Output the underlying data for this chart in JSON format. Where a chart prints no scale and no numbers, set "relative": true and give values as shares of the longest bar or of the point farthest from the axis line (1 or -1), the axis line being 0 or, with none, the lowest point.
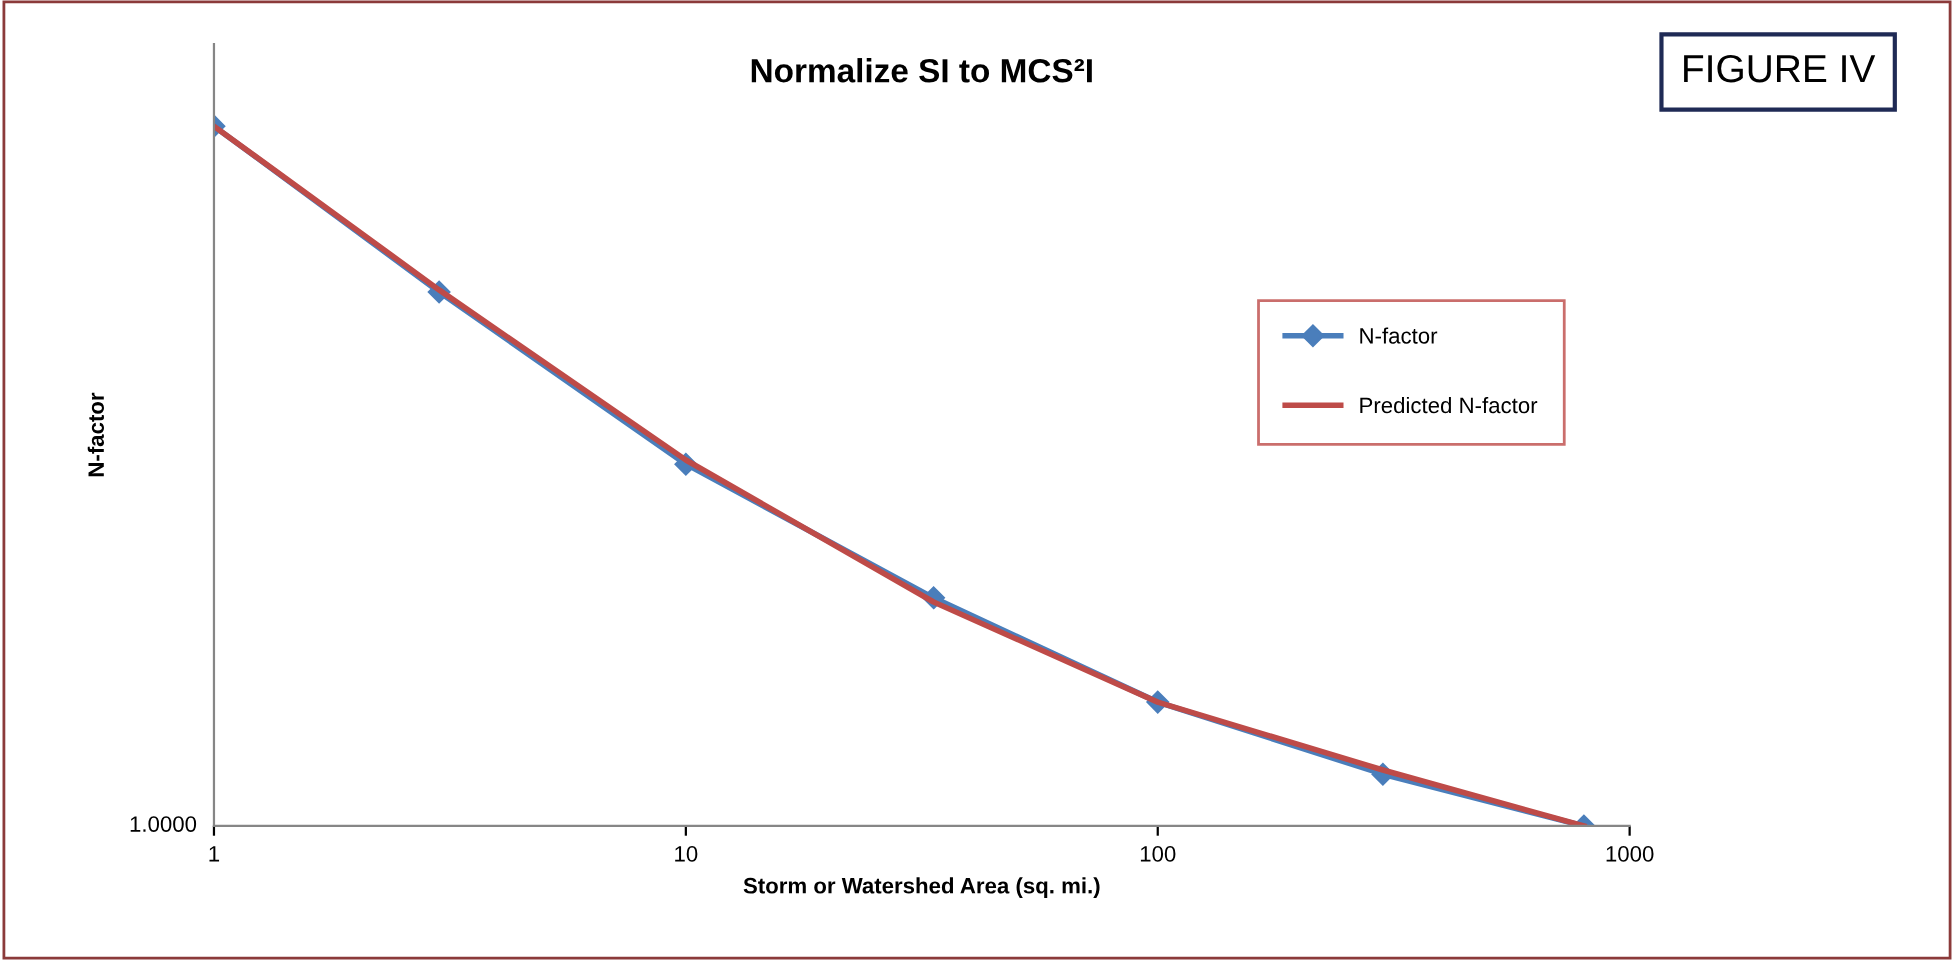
{
  "chart_data": {
    "type": "line",
    "title": "Normalize SI to MCS²I",
    "xlabel": "Storm or Watershed Area (sq. mi.)",
    "ylabel": "N-factor",
    "log": "x",
    "relative": true,
    "xlim": [
      1,
      1000
    ],
    "xticks": [
      1,
      10,
      100,
      1000
    ],
    "grid": false,
    "legend": "right",
    "annotations": [
      "1.0000",
      "FIGURE IV"
    ],
    "series": [
      {
        "name": "N-factor",
        "color": "#4a7ebb",
        "marker": "diamond",
        "x": [
          1,
          3,
          10,
          33.5,
          100,
          300,
          800
        ],
        "values": [
          1,
          0.763,
          0.517,
          0.326,
          0.177,
          0.074,
          0
        ]
      },
      {
        "name": "Predicted N-factor",
        "color": "#be4b48",
        "marker": "none",
        "x": [
          1,
          3,
          10,
          33.5,
          100,
          300,
          800
        ],
        "values": [
          1,
          0.766,
          0.523,
          0.32,
          0.177,
          0.08,
          0
        ]
      }
    ]
  }
}
